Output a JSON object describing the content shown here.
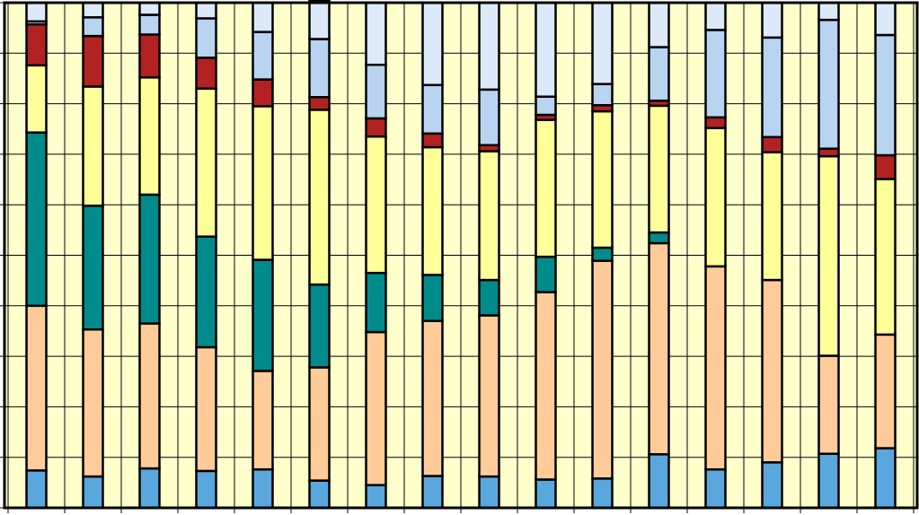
{
  "chart_data": {
    "type": "bar",
    "stacked": true,
    "percent_stacked": true,
    "title": "",
    "xlabel": "",
    "ylabel": "",
    "ylim": [
      0,
      100
    ],
    "grid": true,
    "legend": "none",
    "categories": [
      "",
      "",
      "",
      "",
      "",
      "",
      "",
      "",
      "",
      "",
      "",
      "",
      "",
      "",
      "",
      ""
    ],
    "series": [
      {
        "color": "#5aa7dd",
        "values": [
          7.4,
          6.2,
          7.8,
          7.3,
          7.6,
          5.4,
          4.5,
          6.3,
          6.2,
          5.6,
          5.8,
          10.6,
          7.6,
          9.0,
          10.7,
          11.8
        ]
      },
      {
        "color": "#ffcc99",
        "values": [
          32.6,
          29.1,
          28.7,
          24.5,
          19.5,
          22.4,
          30.3,
          30.7,
          31.9,
          37.1,
          43.1,
          41.8,
          40.2,
          36.1,
          19.4,
          22.5
        ]
      },
      {
        "color": "#008b8b",
        "values": [
          34.3,
          24.5,
          25.5,
          21.9,
          22.0,
          16.4,
          11.7,
          9.1,
          7.0,
          7.0,
          2.6,
          2.1,
          0,
          0,
          0,
          0
        ]
      },
      {
        "color": "#ffff99",
        "values": [
          13.3,
          23.6,
          23.2,
          29.3,
          30.4,
          34.6,
          27.0,
          25.3,
          25.5,
          27.1,
          27.0,
          25.1,
          27.4,
          25.3,
          39.5,
          30.8
        ]
      },
      {
        "color": "#b22222",
        "values": [
          8.1,
          10.0,
          8.5,
          6.1,
          5.3,
          2.5,
          3.6,
          2.7,
          1.2,
          1.0,
          1.2,
          1.0,
          2.1,
          3.0,
          1.5,
          4.7
        ]
      },
      {
        "color": "#b8d4f0",
        "values": [
          0.6,
          3.7,
          3.9,
          7.8,
          9.4,
          11.5,
          10.6,
          9.6,
          11.0,
          3.6,
          4.2,
          10.6,
          17.3,
          19.7,
          25.5,
          23.8
        ]
      },
      {
        "color": "#dce9f8",
        "values": [
          3.7,
          2.9,
          2.4,
          3.1,
          5.8,
          7.6,
          12.3,
          16.3,
          17.2,
          18.6,
          16.1,
          8.8,
          5.4,
          6.9,
          3.4,
          6.4
        ]
      }
    ]
  }
}
